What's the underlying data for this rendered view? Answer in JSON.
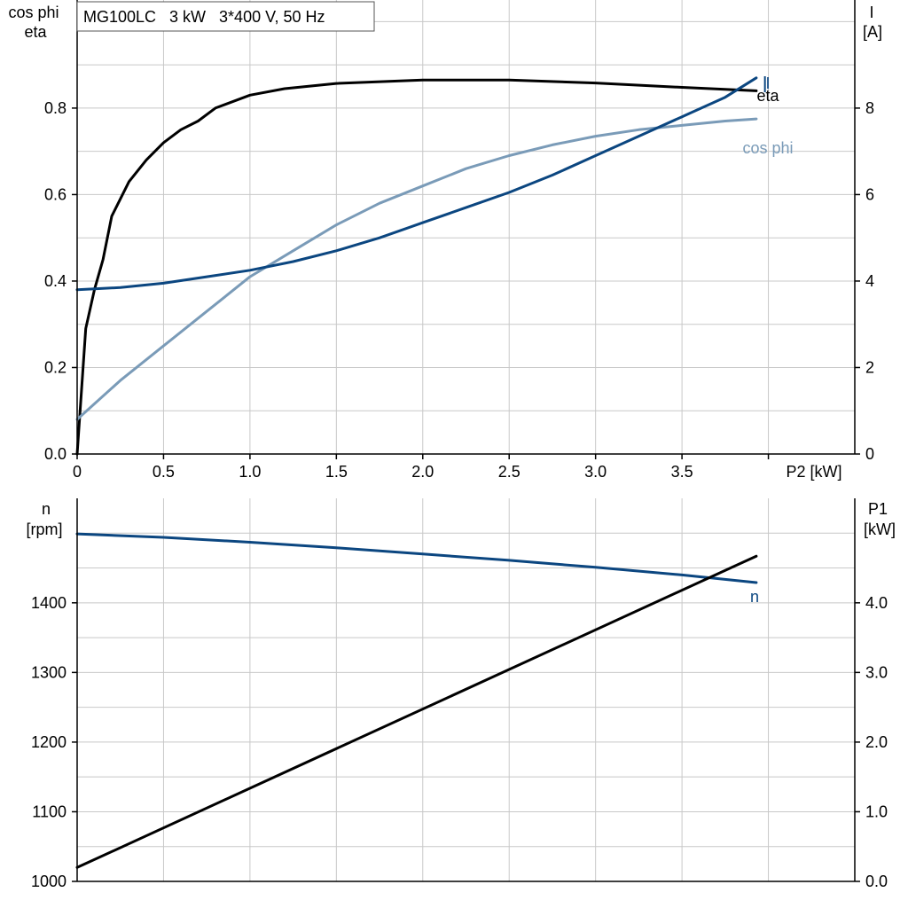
{
  "chart_data": [
    {
      "type": "line",
      "title": "MG100LC   3 kW   3*400 V, 50 Hz",
      "xlabel": "P2 [kW]",
      "xlim": [
        0,
        4.5
      ],
      "x_ticks": [
        0,
        0.5,
        1.0,
        1.5,
        2.0,
        2.5,
        3.0,
        3.5
      ],
      "x_tick_labels": [
        "0",
        "0.5",
        "1.0",
        "1.5",
        "2.0",
        "2.5",
        "3.0",
        "3.5"
      ],
      "ylabel_left": [
        "cos phi",
        "eta"
      ],
      "ylim_left": [
        0,
        1.05
      ],
      "y_ticks_left": [
        0,
        0.2,
        0.4,
        0.6,
        0.8
      ],
      "y_tick_labels_left": [
        "0.0",
        "0.2",
        "0.4",
        "0.6",
        "0.8"
      ],
      "ylabel_right": [
        "I",
        "[A]"
      ],
      "ylim_right": [
        0,
        10.5
      ],
      "y_ticks_right": [
        0,
        2,
        4,
        6,
        8
      ],
      "y_tick_labels_right": [
        "0",
        "2",
        "4",
        "6",
        "8"
      ],
      "grid": true,
      "series": [
        {
          "name": "eta",
          "axis": "left",
          "color": "#000000",
          "x": [
            0,
            0.05,
            0.1,
            0.15,
            0.2,
            0.3,
            0.4,
            0.5,
            0.6,
            0.7,
            0.8,
            1.0,
            1.2,
            1.5,
            2.0,
            2.5,
            3.0,
            3.5,
            3.93
          ],
          "y": [
            0.0,
            0.29,
            0.38,
            0.45,
            0.55,
            0.63,
            0.68,
            0.72,
            0.75,
            0.77,
            0.8,
            0.83,
            0.845,
            0.857,
            0.865,
            0.865,
            0.858,
            0.848,
            0.84
          ]
        },
        {
          "name": "cos phi",
          "axis": "left",
          "color": "#7a9bb8",
          "x": [
            0,
            0.25,
            0.5,
            0.75,
            1.0,
            1.25,
            1.5,
            1.75,
            2.0,
            2.25,
            2.5,
            2.75,
            3.0,
            3.25,
            3.5,
            3.75,
            3.93
          ],
          "y": [
            0.08,
            0.17,
            0.25,
            0.33,
            0.41,
            0.47,
            0.53,
            0.58,
            0.62,
            0.66,
            0.69,
            0.715,
            0.735,
            0.75,
            0.76,
            0.77,
            0.775
          ]
        },
        {
          "name": "I",
          "axis": "right",
          "color": "#0b4680",
          "x": [
            0,
            0.25,
            0.5,
            0.75,
            1.0,
            1.25,
            1.5,
            1.75,
            2.0,
            2.25,
            2.5,
            2.75,
            3.0,
            3.25,
            3.5,
            3.75,
            3.93
          ],
          "y": [
            3.8,
            3.85,
            3.95,
            4.1,
            4.25,
            4.45,
            4.7,
            5.0,
            5.35,
            5.7,
            6.05,
            6.45,
            6.9,
            7.35,
            7.8,
            8.25,
            8.7
          ]
        }
      ]
    },
    {
      "type": "line",
      "xlim": [
        0,
        4.5
      ],
      "ylabel_left": [
        "n",
        "[rpm]"
      ],
      "ylim_left": [
        1000,
        1550
      ],
      "y_ticks_left": [
        1000,
        1100,
        1200,
        1300,
        1400
      ],
      "y_tick_labels_left": [
        "1000",
        "1100",
        "1200",
        "1300",
        "1400"
      ],
      "ylabel_right": [
        "P1",
        "[kW]"
      ],
      "ylim_right": [
        0,
        5.5
      ],
      "y_ticks_right": [
        0,
        1,
        2,
        3,
        4
      ],
      "y_tick_labels_right": [
        "0.0",
        "1.0",
        "2.0",
        "3.0",
        "4.0"
      ],
      "grid": true,
      "series": [
        {
          "name": "n",
          "axis": "left",
          "color": "#0b4680",
          "x": [
            0,
            0.5,
            1.0,
            1.5,
            2.0,
            2.5,
            3.0,
            3.5,
            3.93
          ],
          "y": [
            1499,
            1494,
            1487,
            1479,
            1470,
            1461,
            1451,
            1440,
            1429
          ]
        },
        {
          "name": "P1",
          "axis": "right",
          "color": "#000000",
          "x": [
            0,
            3.93
          ],
          "y": [
            0.2,
            4.67
          ]
        }
      ]
    }
  ]
}
